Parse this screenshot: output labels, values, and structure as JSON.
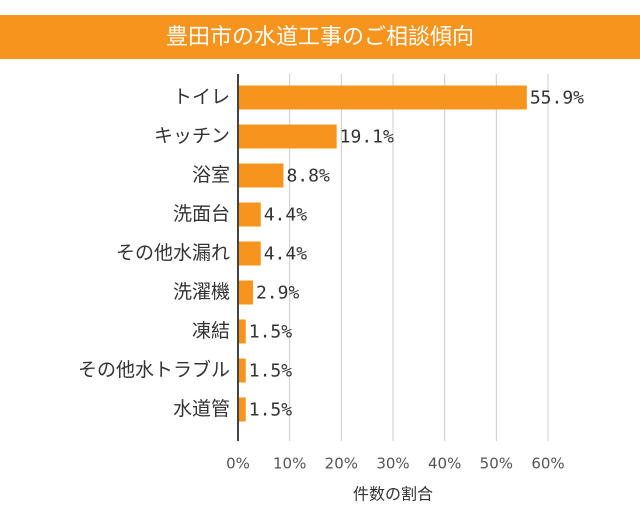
{
  "chart_data": {
    "type": "bar",
    "orientation": "horizontal",
    "title": "豊田市の水道工事のご相談傾向",
    "xlabel": "件数の割合",
    "categories": [
      "トイレ",
      "キッチン",
      "浴室",
      "洗面台",
      "その他水漏れ",
      "洗濯機",
      "凍結",
      "その他水トラブル",
      "水道管"
    ],
    "values": [
      55.9,
      19.1,
      8.8,
      4.4,
      4.4,
      2.9,
      1.5,
      1.5,
      1.5
    ],
    "value_labels": [
      "55.9%",
      "19.1%",
      "8.8%",
      "4.4%",
      "4.4%",
      "2.9%",
      "1.5%",
      "1.5%",
      "1.5%"
    ],
    "color": "#f7941d",
    "xlim": [
      0,
      60
    ],
    "xticks": [
      {
        "value": 0,
        "label": "0%"
      },
      {
        "value": 10,
        "label": "10%"
      },
      {
        "value": 20,
        "label": "20%"
      },
      {
        "value": 30,
        "label": "30%"
      },
      {
        "value": 40,
        "label": "40%"
      },
      {
        "value": 50,
        "label": "50%"
      },
      {
        "value": 60,
        "label": "60%"
      }
    ],
    "grid": true
  }
}
